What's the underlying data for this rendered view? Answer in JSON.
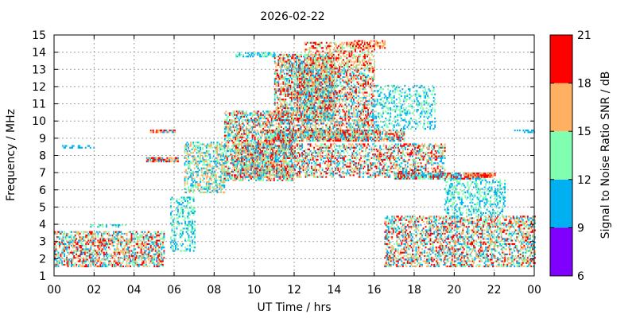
{
  "chart_data": {
    "type": "heatmap",
    "title": "2026-02-22",
    "xlabel": "UT Time / hrs",
    "ylabel": "Frequency / MHz",
    "xlim": [
      0,
      24
    ],
    "ylim": [
      1,
      15
    ],
    "x_tick_labels": [
      "00",
      "02",
      "04",
      "06",
      "08",
      "10",
      "12",
      "14",
      "16",
      "18",
      "20",
      "22",
      "00"
    ],
    "y_tick_labels": [
      "1",
      "2",
      "3",
      "4",
      "5",
      "6",
      "7",
      "8",
      "9",
      "10",
      "11",
      "12",
      "13",
      "14",
      "15"
    ],
    "grid": true,
    "colorbar": {
      "label": "Signal to Noise Ratio SNR / dB",
      "range": [
        6,
        21
      ],
      "tick_labels": [
        "6",
        "9",
        "12",
        "15",
        "18",
        "21"
      ],
      "levels": [
        {
          "from": 6,
          "to": 9,
          "color": "#7f00ff"
        },
        {
          "from": 9,
          "to": 12,
          "color": "#00b0f0"
        },
        {
          "from": 12,
          "to": 15,
          "color": "#80ffb0"
        },
        {
          "from": 15,
          "to": 18,
          "color": "#ffb060"
        },
        {
          "from": 18,
          "to": 21,
          "color": "#ff0000"
        }
      ]
    },
    "regions": [
      {
        "t": [
          0.0,
          5.5
        ],
        "f": [
          1.5,
          3.6
        ],
        "density": 0.55,
        "snr": [
          10,
          13,
          16,
          19
        ]
      },
      {
        "t": [
          0.4,
          2.0
        ],
        "f": [
          8.4,
          8.6
        ],
        "density": 0.35,
        "snr": [
          10
        ]
      },
      {
        "t": [
          1.8,
          3.6
        ],
        "f": [
          3.8,
          4.0
        ],
        "density": 0.4,
        "snr": [
          10,
          12
        ]
      },
      {
        "t": [
          4.6,
          6.2
        ],
        "f": [
          7.6,
          7.8
        ],
        "density": 0.8,
        "snr": [
          19,
          16,
          10
        ]
      },
      {
        "t": [
          4.8,
          6.0
        ],
        "f": [
          9.3,
          9.5
        ],
        "density": 0.7,
        "snr": [
          19,
          16,
          10
        ]
      },
      {
        "t": [
          5.8,
          7.0
        ],
        "f": [
          2.4,
          5.5
        ],
        "density": 0.35,
        "snr": [
          10,
          13
        ]
      },
      {
        "t": [
          6.5,
          8.5
        ],
        "f": [
          5.8,
          8.7
        ],
        "density": 0.5,
        "snr": [
          10,
          13,
          16
        ]
      },
      {
        "t": [
          8.5,
          12.0
        ],
        "f": [
          6.5,
          10.5
        ],
        "density": 0.55,
        "snr": [
          10,
          13,
          16,
          19
        ]
      },
      {
        "t": [
          9.0,
          11.0
        ],
        "f": [
          13.7,
          13.9
        ],
        "density": 0.6,
        "snr": [
          10,
          13
        ]
      },
      {
        "t": [
          11.0,
          14.0
        ],
        "f": [
          10.0,
          13.8
        ],
        "density": 0.6,
        "snr": [
          10,
          13,
          16,
          19
        ]
      },
      {
        "t": [
          12.0,
          16.0
        ],
        "f": [
          9.0,
          13.0
        ],
        "density": 0.5,
        "snr": [
          10,
          13,
          16,
          19
        ]
      },
      {
        "t": [
          10.5,
          17.5
        ],
        "f": [
          8.8,
          9.4
        ],
        "density": 0.75,
        "snr": [
          19,
          16,
          13,
          10
        ]
      },
      {
        "t": [
          12.5,
          16.0
        ],
        "f": [
          13.0,
          14.5
        ],
        "density": 0.4,
        "snr": [
          13,
          16,
          19
        ]
      },
      {
        "t": [
          15.0,
          16.5
        ],
        "f": [
          14.2,
          14.6
        ],
        "density": 0.5,
        "snr": [
          19,
          16
        ]
      },
      {
        "t": [
          9.0,
          19.5
        ],
        "f": [
          6.7,
          8.6
        ],
        "density": 0.45,
        "snr": [
          10,
          13,
          16,
          19
        ]
      },
      {
        "t": [
          16.0,
          19.0
        ],
        "f": [
          9.5,
          12.0
        ],
        "density": 0.3,
        "snr": [
          10,
          13
        ]
      },
      {
        "t": [
          17.0,
          21.5
        ],
        "f": [
          6.6,
          6.9
        ],
        "density": 0.7,
        "snr": [
          10,
          13,
          19
        ]
      },
      {
        "t": [
          20.5,
          22.0
        ],
        "f": [
          6.7,
          6.9
        ],
        "density": 0.8,
        "snr": [
          19,
          16
        ]
      },
      {
        "t": [
          16.5,
          24.0
        ],
        "f": [
          1.5,
          4.5
        ],
        "density": 0.5,
        "snr": [
          10,
          13,
          16,
          19
        ]
      },
      {
        "t": [
          19.5,
          22.5
        ],
        "f": [
          4.5,
          6.5
        ],
        "density": 0.35,
        "snr": [
          10,
          13
        ]
      },
      {
        "t": [
          23.0,
          24.0
        ],
        "f": [
          9.3,
          9.5
        ],
        "density": 0.4,
        "snr": [
          10
        ]
      }
    ]
  }
}
